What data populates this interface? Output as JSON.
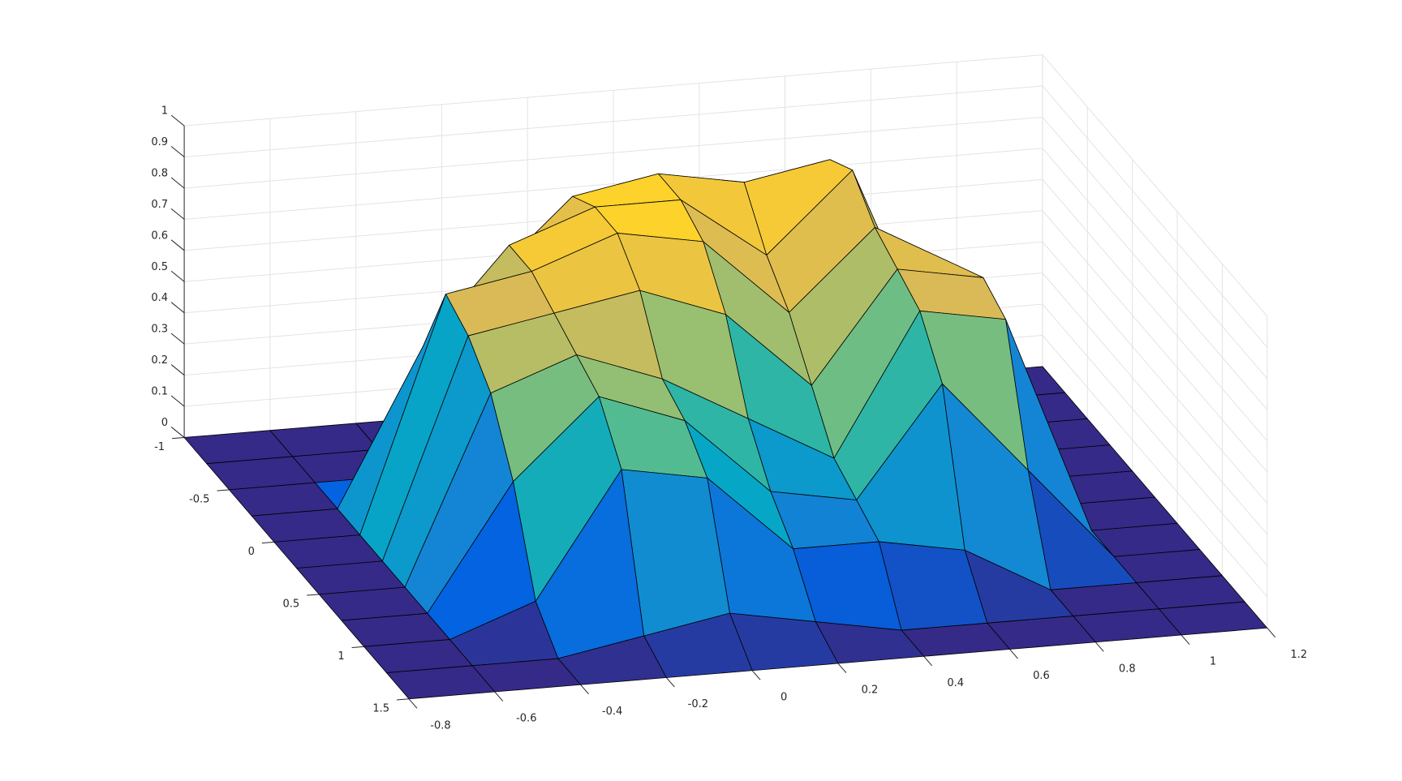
{
  "chart_data": {
    "type": "surface",
    "colormap": "parula",
    "grid": true,
    "x": [
      -0.8,
      -0.6,
      -0.4,
      -0.2,
      0,
      0.2,
      0.4,
      0.6,
      0.8,
      1.0,
      1.2
    ],
    "y": [
      -1,
      -0.75,
      -0.5,
      -0.25,
      0,
      0.25,
      0.5,
      0.75,
      1,
      1.25,
      1.5
    ],
    "z": [
      [
        0,
        0,
        0,
        0,
        0,
        0,
        0,
        0,
        0,
        0,
        0
      ],
      [
        0,
        0,
        0,
        0,
        0.1,
        0.2,
        0.1,
        0,
        0,
        0,
        0
      ],
      [
        0,
        0,
        0,
        0.6,
        0.85,
        0.9,
        0.85,
        0.9,
        0,
        0,
        0
      ],
      [
        0,
        0,
        0.5,
        0.8,
        0.9,
        0.9,
        0.7,
        0.95,
        0.3,
        0,
        0
      ],
      [
        0,
        0,
        0.75,
        0.8,
        0.9,
        0.85,
        0.6,
        0.85,
        0.7,
        0,
        0
      ],
      [
        0,
        0,
        0.7,
        0.75,
        0.8,
        0.7,
        0.45,
        0.8,
        0.75,
        0,
        0
      ],
      [
        0,
        0,
        0.6,
        0.7,
        0.6,
        0.45,
        0.3,
        0.75,
        0.7,
        0,
        0
      ],
      [
        0,
        0,
        0.4,
        0.65,
        0.55,
        0.3,
        0.25,
        0.6,
        0.3,
        0,
        0
      ],
      [
        0,
        0,
        0.1,
        0.5,
        0.45,
        0.2,
        0.2,
        0.15,
        0,
        0,
        0
      ],
      [
        0,
        0,
        0,
        0.05,
        0.1,
        0.05,
        0,
        0,
        0,
        0,
        0
      ],
      [
        0,
        0,
        0,
        0,
        0,
        0,
        0,
        0,
        0,
        0,
        0
      ]
    ],
    "xlim": [
      -0.8,
      1.2
    ],
    "xticks": [
      -0.8,
      -0.6,
      -0.4,
      -0.2,
      0,
      0.2,
      0.4,
      0.6,
      0.8,
      1,
      1.2
    ],
    "ylim": [
      -1,
      1.5
    ],
    "yticks": [
      -1,
      -0.5,
      0,
      0.5,
      1,
      1.5
    ],
    "zlim": [
      0,
      1
    ],
    "zticks": [
      0,
      0.1,
      0.2,
      0.3,
      0.4,
      0.5,
      0.6,
      0.7,
      0.8,
      0.9,
      1
    ]
  }
}
